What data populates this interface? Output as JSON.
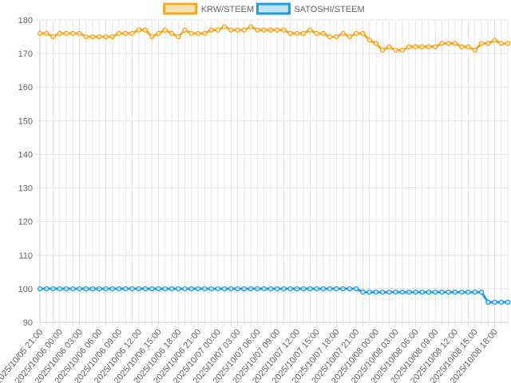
{
  "chart_data": {
    "type": "line",
    "x": [
      "2025/10/05 21:00",
      "2025/10/05 22:00",
      "2025/10/05 23:00",
      "2025/10/06 00:00",
      "2025/10/06 01:00",
      "2025/10/06 02:00",
      "2025/10/06 03:00",
      "2025/10/06 04:00",
      "2025/10/06 05:00",
      "2025/10/06 06:00",
      "2025/10/06 07:00",
      "2025/10/06 08:00",
      "2025/10/06 09:00",
      "2025/10/06 10:00",
      "2025/10/06 11:00",
      "2025/10/06 12:00",
      "2025/10/06 13:00",
      "2025/10/06 14:00",
      "2025/10/06 15:00",
      "2025/10/06 16:00",
      "2025/10/06 17:00",
      "2025/10/06 18:00",
      "2025/10/06 19:00",
      "2025/10/06 20:00",
      "2025/10/06 21:00",
      "2025/10/06 22:00",
      "2025/10/06 23:00",
      "2025/10/07 00:00",
      "2025/10/07 01:00",
      "2025/10/07 02:00",
      "2025/10/07 03:00",
      "2025/10/07 04:00",
      "2025/10/07 05:00",
      "2025/10/07 06:00",
      "2025/10/07 07:00",
      "2025/10/07 08:00",
      "2025/10/07 09:00",
      "2025/10/07 10:00",
      "2025/10/07 11:00",
      "2025/10/07 12:00",
      "2025/10/07 13:00",
      "2025/10/07 14:00",
      "2025/10/07 15:00",
      "2025/10/07 16:00",
      "2025/10/07 17:00",
      "2025/10/07 18:00",
      "2025/10/07 19:00",
      "2025/10/07 20:00",
      "2025/10/07 21:00",
      "2025/10/07 22:00",
      "2025/10/07 23:00",
      "2025/10/08 00:00",
      "2025/10/08 01:00",
      "2025/10/08 02:00",
      "2025/10/08 03:00",
      "2025/10/08 04:00",
      "2025/10/08 05:00",
      "2025/10/08 06:00",
      "2025/10/08 07:00",
      "2025/10/08 08:00",
      "2025/10/08 09:00",
      "2025/10/08 10:00",
      "2025/10/08 11:00",
      "2025/10/08 12:00",
      "2025/10/08 13:00",
      "2025/10/08 14:00",
      "2025/10/08 15:00",
      "2025/10/08 16:00",
      "2025/10/08 17:00",
      "2025/10/08 18:00",
      "2025/10/08 19:00",
      "2025/10/08 20:00"
    ],
    "x_tick_labels": [
      "2025/10/05 21:00",
      "2025/10/06 00:00",
      "2025/10/06 03:00",
      "2025/10/06 06:00",
      "2025/10/06 09:00",
      "2025/10/06 12:00",
      "2025/10/06 15:00",
      "2025/10/06 18:00",
      "2025/10/06 21:00",
      "2025/10/07 00:00",
      "2025/10/07 03:00",
      "2025/10/07 06:00",
      "2025/10/07 09:00",
      "2025/10/07 12:00",
      "2025/10/07 15:00",
      "2025/10/07 18:00",
      "2025/10/07 21:00",
      "2025/10/08 00:00",
      "2025/10/08 03:00",
      "2025/10/08 06:00",
      "2025/10/08 09:00",
      "2025/10/08 12:00",
      "2025/10/08 15:00",
      "2025/10/08 18:00"
    ],
    "series": [
      {
        "name": "KRW/STEEM",
        "color": "#f5a623",
        "values": [
          176,
          176,
          175,
          176,
          176,
          176,
          176,
          175,
          175,
          175,
          175,
          175,
          176,
          176,
          176,
          177,
          177,
          175,
          176,
          177,
          176,
          175,
          177,
          176,
          176,
          176,
          177,
          177,
          178,
          177,
          177,
          177,
          178,
          177,
          177,
          177,
          177,
          177,
          176,
          176,
          176,
          177,
          176,
          176,
          175,
          175,
          176,
          175,
          176,
          176,
          174,
          173,
          171,
          172,
          171,
          171,
          172,
          172,
          172,
          172,
          172,
          173,
          173,
          173,
          172,
          172,
          171,
          173,
          173,
          174,
          173,
          173
        ]
      },
      {
        "name": "SATOSHI/STEEM",
        "color": "#1e9be6",
        "values": [
          100,
          100,
          100,
          100,
          100,
          100,
          100,
          100,
          100,
          100,
          100,
          100,
          100,
          100,
          100,
          100,
          100,
          100,
          100,
          100,
          100,
          100,
          100,
          100,
          100,
          100,
          100,
          100,
          100,
          100,
          100,
          100,
          100,
          100,
          100,
          100,
          100,
          100,
          100,
          100,
          100,
          100,
          100,
          100,
          100,
          100,
          100,
          100,
          100,
          99,
          99,
          99,
          99,
          99,
          99,
          99,
          99,
          99,
          99,
          99,
          99,
          99,
          99,
          99,
          99,
          99,
          99,
          99,
          96,
          96,
          96,
          96
        ]
      }
    ],
    "y_ticks": [
      90,
      100,
      110,
      120,
      130,
      140,
      150,
      160,
      170,
      180
    ],
    "ylim": [
      90,
      180
    ],
    "grid": true,
    "legend_position": "top-center",
    "title": "",
    "xlabel": "",
    "ylabel": ""
  }
}
